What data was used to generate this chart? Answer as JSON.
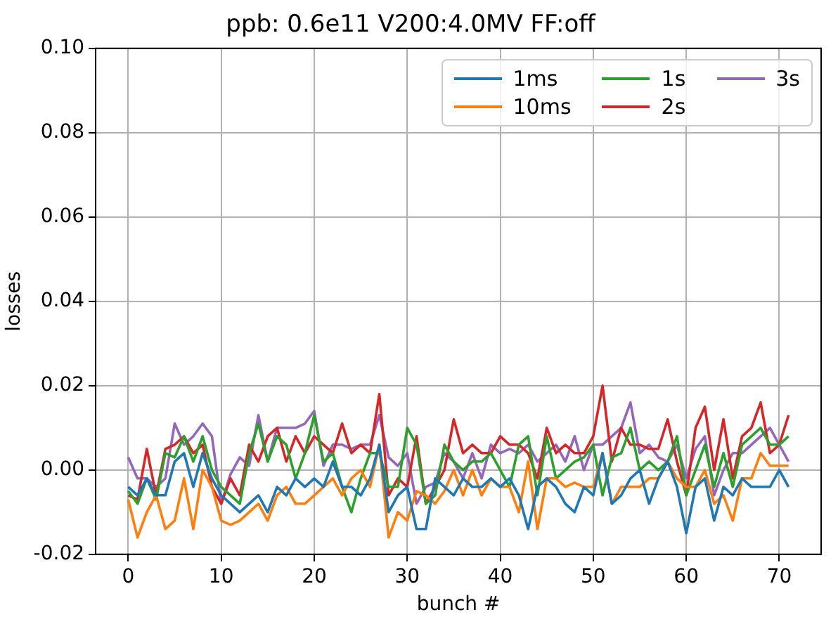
{
  "chart_data": {
    "type": "line",
    "title": "ppb: 0.6e11 V200:4.0MV FF:off",
    "xlabel": "bunch #",
    "ylabel": "losses",
    "x": [
      0,
      1,
      2,
      3,
      4,
      5,
      6,
      7,
      8,
      9,
      10,
      11,
      12,
      13,
      14,
      15,
      16,
      17,
      18,
      19,
      20,
      21,
      22,
      23,
      24,
      25,
      26,
      27,
      28,
      29,
      30,
      31,
      32,
      33,
      34,
      35,
      36,
      37,
      38,
      39,
      40,
      41,
      42,
      43,
      44,
      45,
      46,
      47,
      48,
      49,
      50,
      51,
      52,
      53,
      54,
      55,
      56,
      57,
      58,
      59,
      60,
      61,
      62,
      63,
      64,
      65,
      66,
      67,
      68,
      69,
      70,
      71
    ],
    "series": [
      {
        "name": "1ms",
        "color": "#1f77b4",
        "values": [
          -0.004,
          -0.006,
          -0.002,
          -0.006,
          -0.006,
          0.002,
          0.004,
          -0.004,
          0.004,
          -0.002,
          -0.006,
          -0.008,
          -0.01,
          -0.008,
          -0.006,
          -0.01,
          -0.004,
          -0.006,
          -0.002,
          -0.004,
          -0.002,
          -0.004,
          0.002,
          -0.004,
          -0.004,
          -0.006,
          -0.002,
          0.006,
          -0.01,
          -0.006,
          -0.004,
          -0.014,
          -0.014,
          -0.002,
          -0.004,
          -0.006,
          -0.002,
          -0.004,
          -0.004,
          -0.002,
          -0.004,
          -0.002,
          -0.006,
          -0.014,
          -0.004,
          -0.002,
          -0.004,
          -0.008,
          -0.01,
          -0.004,
          -0.006,
          0.004,
          -0.008,
          -0.006,
          -0.002,
          0.0,
          -0.008,
          -0.002,
          0.002,
          -0.004,
          -0.015,
          -0.004,
          -0.002,
          -0.012,
          -0.004,
          -0.006,
          -0.002,
          -0.004,
          -0.004,
          -0.004,
          0.0,
          -0.004
        ]
      },
      {
        "name": "10ms",
        "color": "#ff7f0e",
        "values": [
          -0.007,
          -0.016,
          -0.01,
          -0.006,
          -0.014,
          -0.012,
          -0.002,
          -0.014,
          0.0,
          -0.004,
          -0.012,
          -0.013,
          -0.012,
          -0.01,
          -0.008,
          -0.012,
          -0.006,
          -0.004,
          -0.008,
          -0.008,
          -0.006,
          -0.004,
          -0.002,
          -0.006,
          -0.002,
          0.0,
          -0.004,
          0.006,
          -0.016,
          -0.01,
          -0.012,
          -0.005,
          -0.006,
          -0.008,
          -0.005,
          0.0,
          -0.006,
          0.0,
          -0.006,
          -0.002,
          -0.004,
          -0.004,
          -0.01,
          0.002,
          -0.014,
          -0.002,
          -0.002,
          -0.004,
          -0.003,
          -0.004,
          -0.004,
          0.004,
          -0.008,
          -0.004,
          -0.004,
          -0.004,
          -0.002,
          -0.002,
          0.002,
          -0.002,
          -0.004,
          -0.004,
          0.0,
          -0.008,
          -0.006,
          -0.012,
          -0.002,
          -0.002,
          0.004,
          0.001,
          0.001,
          0.001
        ]
      },
      {
        "name": "1s",
        "color": "#2ca02c",
        "values": [
          -0.005,
          -0.008,
          -0.002,
          -0.007,
          0.004,
          0.003,
          0.008,
          0.002,
          0.008,
          0.0,
          -0.004,
          -0.006,
          -0.008,
          0.004,
          0.011,
          0.002,
          0.008,
          0.006,
          -0.002,
          0.004,
          0.013,
          0.002,
          0.004,
          -0.004,
          -0.01,
          -0.002,
          0.004,
          0.004,
          -0.004,
          -0.004,
          0.01,
          0.006,
          -0.008,
          -0.006,
          0.006,
          0.002,
          0.0,
          0.002,
          0.002,
          0.004,
          0.0,
          -0.004,
          0.006,
          0.008,
          -0.006,
          0.008,
          -0.002,
          0.0,
          0.002,
          0.003,
          0.006,
          -0.006,
          0.003,
          0.004,
          0.01,
          0.0,
          0.002,
          0.0,
          0.002,
          0.008,
          -0.006,
          0.0,
          0.006,
          -0.004,
          0.004,
          -0.004,
          0.006,
          0.008,
          0.01,
          0.006,
          0.006,
          0.008
        ]
      },
      {
        "name": "2s",
        "color": "#d62728",
        "values": [
          -0.006,
          -0.007,
          0.005,
          -0.006,
          0.005,
          0.006,
          0.008,
          0.004,
          0.006,
          -0.004,
          -0.008,
          -0.002,
          -0.006,
          0.006,
          0.002,
          0.008,
          0.01,
          0.002,
          0.008,
          0.004,
          0.008,
          0.006,
          0.004,
          0.011,
          0.004,
          0.006,
          0.004,
          0.018,
          -0.006,
          -0.002,
          -0.004,
          0.008,
          -0.008,
          -0.004,
          0.0,
          0.012,
          0.004,
          0.006,
          0.004,
          0.004,
          0.008,
          0.006,
          0.006,
          0.004,
          -0.002,
          0.01,
          0.004,
          0.006,
          0.004,
          0.004,
          0.008,
          0.02,
          0.002,
          0.01,
          0.006,
          0.006,
          0.005,
          0.005,
          0.012,
          0.002,
          -0.006,
          0.01,
          0.015,
          0.0,
          0.012,
          -0.002,
          0.008,
          0.01,
          0.016,
          0.004,
          0.006,
          0.013
        ]
      },
      {
        "name": "3s",
        "color": "#9467bd",
        "values": [
          0.003,
          -0.002,
          -0.002,
          -0.004,
          -0.002,
          0.011,
          0.006,
          0.008,
          0.011,
          0.008,
          -0.008,
          -0.001,
          0.003,
          0.001,
          0.013,
          0.002,
          0.01,
          0.01,
          0.01,
          0.011,
          0.014,
          0.001,
          0.006,
          0.006,
          0.005,
          0.006,
          0.006,
          0.013,
          0.003,
          0.001,
          0.004,
          -0.008,
          -0.004,
          -0.003,
          0.004,
          0.002,
          -0.002,
          0.004,
          -0.002,
          0.006,
          0.004,
          0.005,
          0.004,
          0.006,
          0.002,
          0.004,
          0.006,
          0.002,
          0.008,
          0.0,
          0.006,
          0.006,
          0.008,
          0.01,
          0.016,
          0.004,
          0.006,
          0.003,
          0.002,
          0.006,
          -0.002,
          0.005,
          0.008,
          -0.006,
          0.0,
          0.004,
          0.004,
          0.006,
          0.008,
          0.01,
          0.006,
          0.002
        ]
      }
    ],
    "xlim": [
      -3.5,
      74.5
    ],
    "xticks": [
      0,
      10,
      20,
      30,
      40,
      50,
      60,
      70
    ],
    "ylim": [
      -0.02,
      0.1
    ],
    "yticks": [
      {
        "value": -0.02,
        "label": "-0.02"
      },
      {
        "value": 0,
        "label": "0.00"
      },
      {
        "value": 0.02,
        "label": "0.02"
      },
      {
        "value": 0.04,
        "label": "0.04"
      },
      {
        "value": 0.06,
        "label": "0.06"
      },
      {
        "value": 0.08,
        "label": "0.08"
      },
      {
        "value": 0.1,
        "label": "0.10"
      }
    ],
    "grid": true,
    "legend": "top right",
    "marker": "none",
    "line_style": "solid"
  }
}
